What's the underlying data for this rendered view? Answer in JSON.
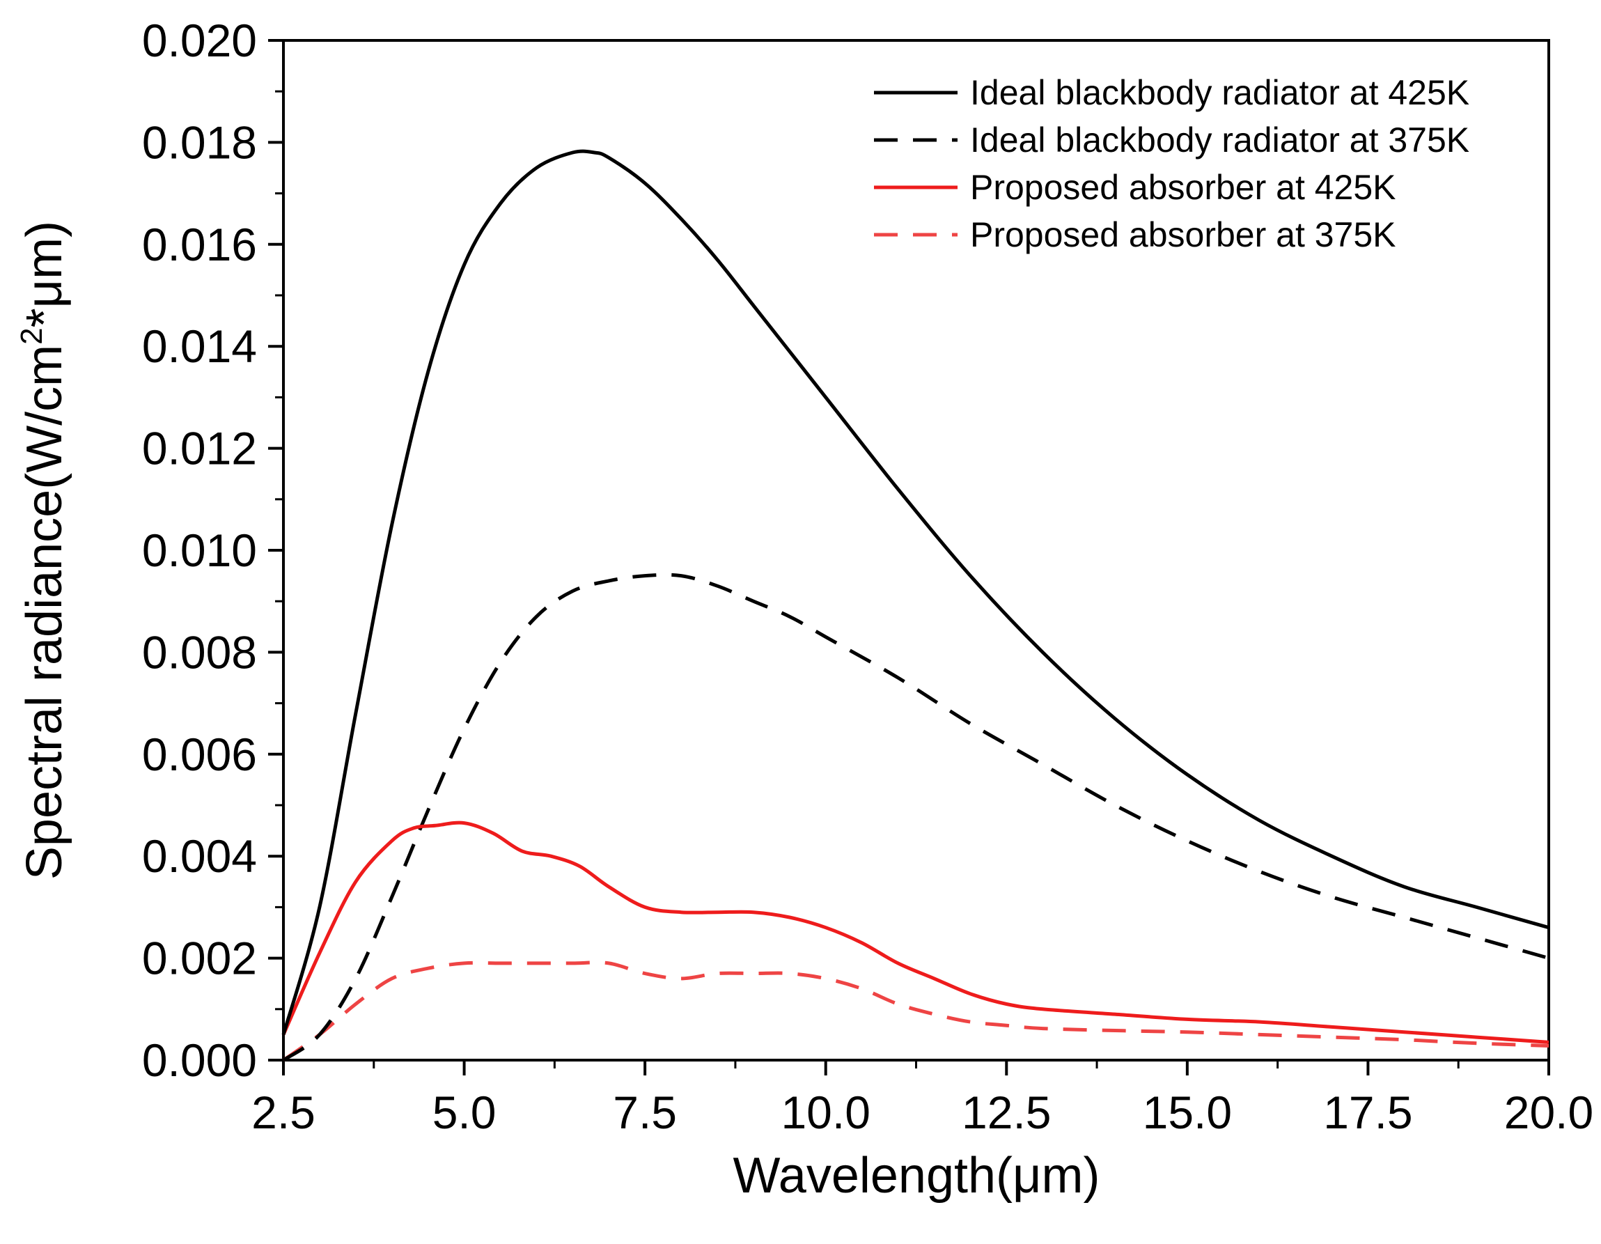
{
  "chart_data": {
    "type": "line",
    "title": "",
    "xlabel": "Wavelength(μm)",
    "ylabel_main": "Spectral radiance(W/cm",
    "ylabel_sup": "2",
    "ylabel_tail": "*μm)",
    "xlim": [
      2.5,
      20.0
    ],
    "ylim": [
      0.0,
      0.02
    ],
    "x_ticks": [
      2.5,
      5.0,
      7.5,
      10.0,
      12.5,
      15.0,
      17.5,
      20.0
    ],
    "x_tick_labels": [
      "2.5",
      "5.0",
      "7.5",
      "10.0",
      "12.5",
      "15.0",
      "17.5",
      "20.0"
    ],
    "y_ticks": [
      0.0,
      0.002,
      0.004,
      0.006,
      0.008,
      0.01,
      0.012,
      0.014,
      0.016,
      0.018,
      0.02
    ],
    "y_tick_labels": [
      "0.000",
      "0.002",
      "0.004",
      "0.006",
      "0.008",
      "0.010",
      "0.012",
      "0.014",
      "0.016",
      "0.018",
      "0.020"
    ],
    "grid": false,
    "legend_position": "top-right",
    "series": [
      {
        "name": "Ideal blackbody radiator at 425K",
        "color": "#000000",
        "dash": "solid",
        "x": [
          2.5,
          3.0,
          3.5,
          4.0,
          4.5,
          5.0,
          5.5,
          6.0,
          6.5,
          6.8,
          7.0,
          7.5,
          8.0,
          8.5,
          9.0,
          9.5,
          10.0,
          11.0,
          12.0,
          13.0,
          14.0,
          15.0,
          16.0,
          17.0,
          18.0,
          19.0,
          20.0
        ],
        "y": [
          0.0005,
          0.003,
          0.0068,
          0.0105,
          0.0135,
          0.0156,
          0.0168,
          0.0175,
          0.0178,
          0.0178,
          0.0177,
          0.0172,
          0.0165,
          0.0157,
          0.0148,
          0.0139,
          0.013,
          0.0112,
          0.0095,
          0.008,
          0.0067,
          0.0056,
          0.0047,
          0.004,
          0.0034,
          0.003,
          0.0026
        ]
      },
      {
        "name": "Ideal blackbody radiator at 375K",
        "color": "#000000",
        "dash": "dashed",
        "x": [
          2.5,
          3.0,
          3.5,
          4.0,
          4.5,
          5.0,
          5.5,
          6.0,
          6.5,
          7.0,
          7.5,
          8.0,
          8.5,
          9.0,
          9.5,
          10.0,
          11.0,
          12.0,
          13.0,
          14.0,
          15.0,
          16.0,
          17.0,
          18.0,
          19.0,
          20.0
        ],
        "y": [
          0.0,
          0.0005,
          0.0016,
          0.0032,
          0.0049,
          0.0065,
          0.0078,
          0.0087,
          0.0092,
          0.0094,
          0.0095,
          0.0095,
          0.0093,
          0.009,
          0.0087,
          0.0083,
          0.0075,
          0.0066,
          0.0058,
          0.005,
          0.0043,
          0.0037,
          0.0032,
          0.0028,
          0.0024,
          0.002
        ]
      },
      {
        "name": "Proposed absorber at 425K",
        "color": "#ee1c1c",
        "dash": "solid",
        "x": [
          2.5,
          3.0,
          3.5,
          4.0,
          4.3,
          4.6,
          5.0,
          5.4,
          5.8,
          6.2,
          6.6,
          7.0,
          7.5,
          8.0,
          8.5,
          9.0,
          9.5,
          10.0,
          10.5,
          11.0,
          11.5,
          12.0,
          12.5,
          13.0,
          14.0,
          15.0,
          16.0,
          17.0,
          18.0,
          19.0,
          20.0
        ],
        "y": [
          0.0005,
          0.0021,
          0.0035,
          0.0043,
          0.00455,
          0.0046,
          0.00465,
          0.00445,
          0.0041,
          0.004,
          0.0038,
          0.0034,
          0.003,
          0.0029,
          0.0029,
          0.0029,
          0.0028,
          0.0026,
          0.0023,
          0.0019,
          0.0016,
          0.0013,
          0.0011,
          0.001,
          0.0009,
          0.0008,
          0.00075,
          0.00065,
          0.00055,
          0.00045,
          0.00035
        ]
      },
      {
        "name": "Proposed absorber at 375K",
        "color": "#ee4444",
        "dash": "dashed",
        "x": [
          2.5,
          3.0,
          3.5,
          4.0,
          4.5,
          5.0,
          5.5,
          6.0,
          6.5,
          7.0,
          7.5,
          8.0,
          8.5,
          9.0,
          9.5,
          10.0,
          10.5,
          11.0,
          11.5,
          12.0,
          12.5,
          13.0,
          14.0,
          15.0,
          16.0,
          17.0,
          18.0,
          19.0,
          20.0
        ],
        "y": [
          0.0,
          0.0005,
          0.0011,
          0.0016,
          0.0018,
          0.0019,
          0.0019,
          0.0019,
          0.0019,
          0.0019,
          0.0017,
          0.0016,
          0.0017,
          0.0017,
          0.0017,
          0.0016,
          0.0014,
          0.0011,
          0.0009,
          0.00075,
          0.00068,
          0.00062,
          0.00058,
          0.00055,
          0.0005,
          0.00045,
          0.0004,
          0.00033,
          0.00028
        ]
      }
    ]
  }
}
